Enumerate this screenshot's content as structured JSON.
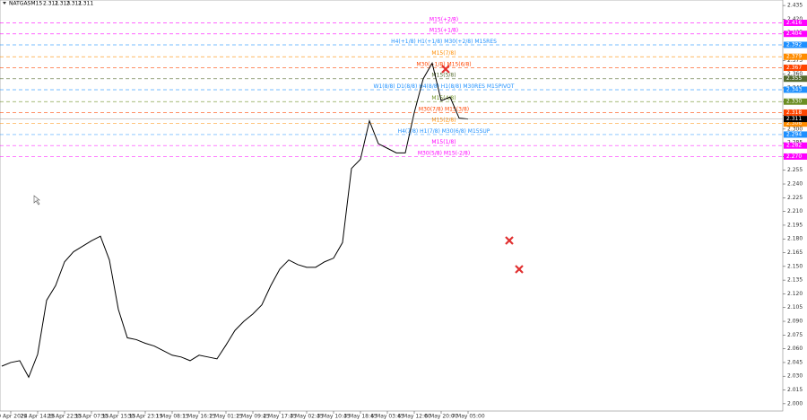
{
  "chart_data": {
    "type": "line",
    "title": "NATGASM15",
    "ohlc": [
      2.311,
      2.313,
      2.311,
      2.311
    ],
    "categories": [
      null,
      "29 Apr 2024",
      null,
      null,
      "29 Apr 14:15",
      null,
      null,
      "29 Apr 22:15",
      null,
      null,
      "30 Apr 07:15",
      null,
      null,
      "30 Apr 15:15",
      null,
      null,
      "30 Apr 23:15",
      null,
      null,
      "1 May 08:15",
      null,
      null,
      "1 May 16:15",
      null,
      null,
      "2 May 01:15",
      null,
      null,
      "2 May 09:45",
      null,
      null,
      "2 May 17:45",
      null,
      null,
      "3 May 02:45",
      null,
      null,
      "3 May 10:45",
      null,
      null,
      "3 May 18:45",
      null,
      null,
      "6 May 03:45",
      null,
      null,
      "6 May 12:00",
      null,
      null,
      "6 May 20:00",
      null,
      null,
      "7 May 05:00"
    ],
    "series": [
      {
        "name": "NATGASM15",
        "color": "#000000",
        "values": [
          2.041,
          2.045,
          2.047,
          2.029,
          2.054,
          2.113,
          2.129,
          2.155,
          2.166,
          2.172,
          2.178,
          2.183,
          2.157,
          2.103,
          2.072,
          2.07,
          2.066,
          2.063,
          2.058,
          2.053,
          2.051,
          2.047,
          2.053,
          2.051,
          2.049,
          2.064,
          2.08,
          2.09,
          2.098,
          2.108,
          2.129,
          2.147,
          2.157,
          2.152,
          2.149,
          2.149,
          2.155,
          2.159,
          2.176,
          2.257,
          2.267,
          2.309,
          2.284,
          2.279,
          2.274,
          2.274,
          2.318,
          2.355,
          2.372,
          2.331,
          2.335,
          2.312,
          2.311
        ]
      }
    ],
    "levels": [
      {
        "label": "M15(+2/8)",
        "value": 2.416,
        "value_label": "2.416",
        "color": "#ff00ff"
      },
      {
        "label": "M15(+1/8)",
        "value": 2.404,
        "value_label": "2.404",
        "color": "#ff00ff"
      },
      {
        "label": "H4(+1/8) H1(+1/8) M30(+2/8) M15RES",
        "value": 2.392,
        "value_label": "2.392",
        "color": "#1e90ff"
      },
      {
        "label": "M15(7/8)",
        "value": 2.379,
        "value_label": "2.379",
        "color": "#ff8c00"
      },
      {
        "label": "M30(+1/8) M15(6/8)",
        "value": 2.367,
        "value_label": "2.367",
        "color": "#ff4500"
      },
      {
        "label": "M15(5/8)",
        "value": 2.355,
        "value_label": "2.355",
        "color": "#556b2f"
      },
      {
        "label": "W1(8/8) D1(8/8) H4(8/8) H1(8/8) M30RES M15PIVOT",
        "value": 2.343,
        "value_label": "2.343",
        "color": "#1e90ff"
      },
      {
        "label": "M15(4/8)",
        "value": 2.33,
        "value_label": "2.330",
        "color": "#6b8e23"
      },
      {
        "label": "M30(7/8) M15(3/8)",
        "value": 2.318,
        "value_label": "2.318",
        "color": "#ff4500"
      },
      {
        "label": "M15(2/8)",
        "value": 2.306,
        "value_label": "2.306",
        "color": "#ff8c00"
      },
      {
        "label": "H4(7/8) H1(7/8) M30(6/8) M15SUP",
        "value": 2.294,
        "value_label": "2.294",
        "color": "#1e90ff"
      },
      {
        "label": "M15(1/8)",
        "value": 2.282,
        "value_label": "2.282",
        "color": "#ff00ff"
      },
      {
        "label": "M30(5/8) M15(-2/8)",
        "value": 2.27,
        "value_label": "2.270",
        "color": "#ff00ff"
      }
    ],
    "current_price": {
      "value": 2.311,
      "value_label": "2.311",
      "color": "#000000"
    },
    "ylim": [
      1.992,
      2.441
    ],
    "yticks": [
      2.435,
      {
        "value": 2.42,
        "label": "2.420"
      },
      2.405,
      {
        "value": 2.39,
        "label": "2.390"
      },
      2.375,
      {
        "value": 2.36,
        "label": "2.360"
      },
      2.345,
      {
        "value": 2.33,
        "label": "2.330"
      },
      2.315,
      {
        "value": 2.3,
        "label": "2.300"
      },
      2.285,
      {
        "value": 2.27,
        "label": "2.270"
      },
      2.255,
      {
        "value": 2.24,
        "label": "2.240"
      },
      2.225,
      {
        "value": 2.21,
        "label": "2.210"
      },
      2.195,
      {
        "value": 2.18,
        "label": "2.180"
      },
      2.165,
      {
        "value": 2.15,
        "label": "2.150"
      },
      2.135,
      {
        "value": 2.12,
        "label": "2.120"
      },
      2.105,
      {
        "value": 2.09,
        "label": "2.090"
      },
      2.075,
      {
        "value": 2.06,
        "label": "2.060"
      },
      2.045,
      {
        "value": 2.03,
        "label": "2.030"
      },
      2.015,
      {
        "value": 2,
        "label": "2.000"
      }
    ],
    "grid": false
  }
}
